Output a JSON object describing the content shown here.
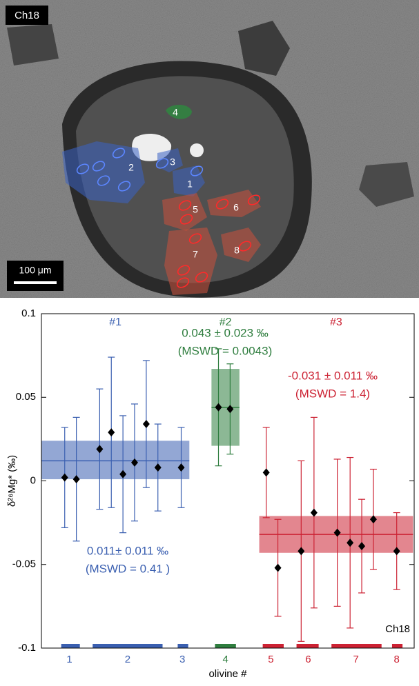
{
  "image": {
    "sample_label": "Ch18",
    "scale_bar": "100 μm",
    "grains": [
      {
        "label": "1",
        "color": "#3b62c4"
      },
      {
        "label": "2",
        "color": "#3b62c4"
      },
      {
        "label": "3",
        "color": "#3b62c4"
      },
      {
        "label": "4",
        "color": "#2d8a3e"
      },
      {
        "label": "5",
        "color": "#c0503e"
      },
      {
        "label": "6",
        "color": "#c0503e"
      },
      {
        "label": "7",
        "color": "#c0503e"
      },
      {
        "label": "8",
        "color": "#c0503e"
      }
    ]
  },
  "chart_data": {
    "type": "errorbar",
    "y_label": "δ²⁶Mg* (‰)",
    "x_label": "olivine #",
    "sample_label": "Ch18",
    "xlim": [
      0,
      32
    ],
    "ylim": [
      -0.1,
      0.1
    ],
    "yticks": [
      0.1,
      0.05,
      0,
      -0.05,
      -0.1
    ],
    "olivines": [
      {
        "label": "1",
        "position": 2.4,
        "span": [
          1.7,
          3.3
        ],
        "color": "#3a5fb0"
      },
      {
        "label": "2",
        "position": 7.4,
        "span": [
          4.4,
          10.4
        ],
        "color": "#3a5fb0"
      },
      {
        "label": "3",
        "position": 12.1,
        "span": [
          11.7,
          12.6
        ],
        "color": "#3a5fb0"
      },
      {
        "label": "4",
        "position": 15.8,
        "span": [
          14.9,
          16.7
        ],
        "color": "#2e7d3e"
      },
      {
        "label": "5",
        "position": 19.7,
        "span": [
          19.0,
          20.8
        ],
        "color": "#cc2233"
      },
      {
        "label": "6",
        "position": 22.9,
        "span": [
          21.9,
          23.8
        ],
        "color": "#cc2233"
      },
      {
        "label": "7",
        "position": 27.0,
        "span": [
          24.9,
          29.2
        ],
        "color": "#cc2233"
      },
      {
        "label": "8",
        "position": 30.5,
        "span": [
          30.1,
          31.0
        ],
        "color": "#cc2233"
      }
    ],
    "series": [
      {
        "name": "#1",
        "color": "#3a5fb0",
        "x": [
          2,
          3,
          5,
          6,
          7,
          8,
          9,
          10,
          12
        ],
        "values": [
          0.002,
          0.001,
          0.019,
          0.029,
          0.004,
          0.011,
          0.034,
          0.008,
          0.008
        ],
        "errors": [
          0.03,
          0.037,
          0.036,
          0.045,
          0.035,
          0.035,
          0.038,
          0.026,
          0.024
        ],
        "band": {
          "mean": 0.012,
          "low": 0.001,
          "high": 0.024,
          "x": [
            0,
            12.7
          ]
        },
        "annotation": [
          "0.011± 0.011 ‰",
          "(MSWD = 0.41 )"
        ]
      },
      {
        "name": "#2",
        "color": "#2e7d3e",
        "x": [
          15.2,
          16.2
        ],
        "values": [
          0.044,
          0.043
        ],
        "errors": [
          0.035,
          0.027
        ],
        "band": {
          "mean": 0.044,
          "low": 0.021,
          "high": 0.067,
          "x": [
            14.6,
            17.0
          ]
        },
        "annotation": [
          "0.043 ± 0.023 ‰",
          "(MSWD = 0.0043)"
        ]
      },
      {
        "name": "#3",
        "color": "#cc2233",
        "x": [
          19.3,
          20.3,
          22.3,
          23.4,
          25.4,
          26.5,
          27.5,
          28.5,
          30.5
        ],
        "values": [
          0.005,
          -0.052,
          -0.042,
          -0.019,
          -0.031,
          -0.037,
          -0.039,
          -0.023,
          -0.042
        ],
        "errors": [
          0.027,
          0.029,
          0.054,
          0.057,
          0.044,
          0.051,
          0.028,
          0.03,
          0.023
        ],
        "band": {
          "mean": -0.032,
          "low": -0.043,
          "high": -0.021,
          "x": [
            18.7,
            31.9
          ]
        },
        "annotation": [
          "-0.031 ± 0.011 ‰",
          "(MSWD = 1.4)"
        ]
      }
    ]
  }
}
